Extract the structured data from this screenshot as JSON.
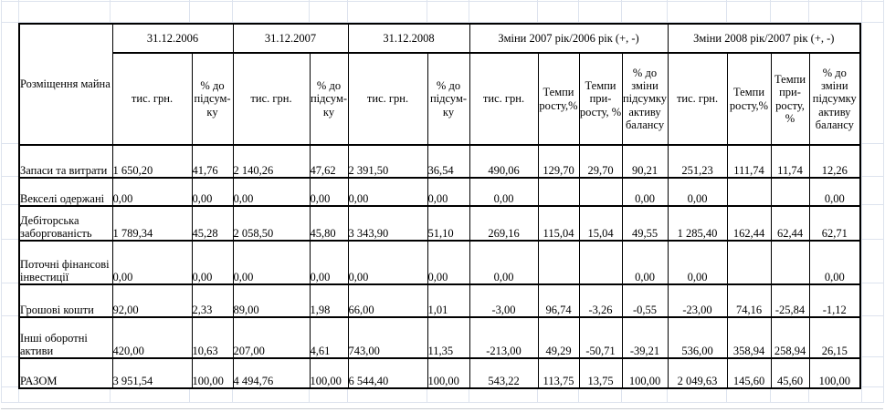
{
  "table": {
    "corner_label": "Розміщення майна",
    "col_groups": [
      {
        "label": "31.12.2006",
        "children": [
          "тис. грн.",
          "% до підсум-ку"
        ]
      },
      {
        "label": "31.12.2007",
        "children": [
          "тис. грн.",
          "% до підсум-ку"
        ]
      },
      {
        "label": "31.12.2008",
        "children": [
          "тис. грн.",
          "% до підсум-ку"
        ]
      },
      {
        "label": "Зміни 2007 рік/2006 рік (+, -)",
        "children": [
          "тис. грн.",
          "Темпи росту,%",
          "Темпи при-росту, %",
          "% до зміни підсумку активу балансу"
        ]
      },
      {
        "label": "Зміни 2008 рік/2007 рік (+, -)",
        "children": [
          "тис. грн.",
          "Темпи росту,%",
          "Темпи при-росту, %",
          "% до зміни підсумку активу балансу"
        ]
      }
    ],
    "rows": [
      {
        "label": "Запаси та витрати",
        "values": [
          "1 650,20",
          "41,76",
          "2 140,26",
          "47,62",
          "2 391,50",
          "36,54",
          "490,06",
          "129,70",
          "29,70",
          "90,21",
          "251,23",
          "111,74",
          "11,74",
          "12,26"
        ]
      },
      {
        "label": "Векселі одержані",
        "values": [
          "0,00",
          "0,00",
          "0,00",
          "0,00",
          "0,00",
          "0,00",
          "0,00",
          "",
          "",
          "0,00",
          "0,00",
          "",
          "",
          "0,00"
        ]
      },
      {
        "label": "Дебіторська заборгованість",
        "values": [
          "1 789,34",
          "45,28",
          "2 058,50",
          "45,80",
          "3 343,90",
          "51,10",
          "269,16",
          "115,04",
          "15,04",
          "49,55",
          "1 285,40",
          "162,44",
          "62,44",
          "62,71"
        ]
      },
      {
        "label": "Поточні фінансові інвестиції",
        "values": [
          "0,00",
          "0,00",
          "0,00",
          "0,00",
          "0,00",
          "0,00",
          "0,00",
          "",
          "",
          "0,00",
          "0,00",
          "",
          "",
          "0,00"
        ]
      },
      {
        "label": "Грошові кошти",
        "values": [
          "92,00",
          "2,33",
          "89,00",
          "1,98",
          "66,00",
          "1,01",
          "-3,00",
          "96,74",
          "-3,26",
          "-0,55",
          "-23,00",
          "74,16",
          "-25,84",
          "-1,12"
        ]
      },
      {
        "label": "Інші оборотні активи",
        "values": [
          "420,00",
          "10,63",
          "207,00",
          "4,61",
          "743,00",
          "11,35",
          "-213,00",
          "49,29",
          "-50,71",
          "-39,21",
          "536,00",
          "358,94",
          "258,94",
          "26,15"
        ]
      },
      {
        "label": "РАЗОМ",
        "values": [
          "3 951,54",
          "100,00",
          "4 494,76",
          "100,00",
          "6 544,40",
          "100,00",
          "543,22",
          "113,75",
          "13,75",
          "100,00",
          "2 049,63",
          "145,60",
          "45,60",
          "100,00"
        ]
      }
    ]
  },
  "colors": {
    "table_border": "#000000",
    "gridline": "#dde3ee",
    "page_edge": "#c9ccd1",
    "text": "#000000"
  }
}
